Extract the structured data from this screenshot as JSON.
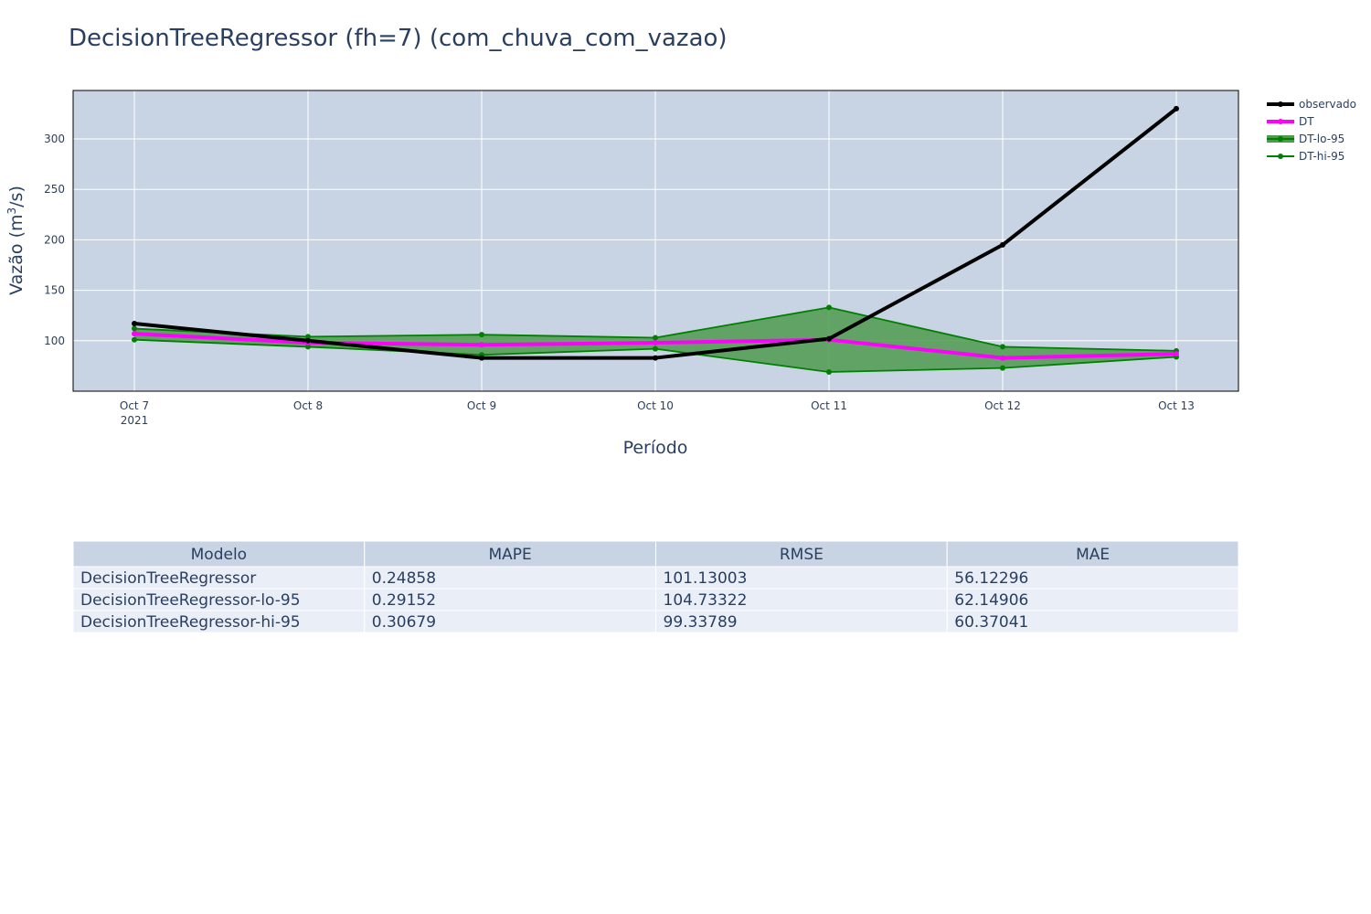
{
  "colors": {
    "plot_bg": "#c8d4e3",
    "grid": "#ffffff",
    "observado": "#000000",
    "dt": "#ff00ff",
    "band_line": "#008000",
    "band_fill": "#4e9a4e",
    "table_header_bg": "#c8d4e3",
    "table_cell_bg": "#e9eef7",
    "text": "#2a3f5f"
  },
  "chart_data": {
    "type": "line",
    "title": "DecisionTreeRegressor (fh=7) (com_chuva_com_vazao)",
    "xlabel": "Período",
    "ylabel": "Vazão (m³/s)",
    "ylabel_main": "Vazão (m",
    "ylabel_sup": "3",
    "ylabel_tail": "/s)",
    "x": [
      "Oct 7",
      "Oct 8",
      "Oct 9",
      "Oct 10",
      "Oct 11",
      "Oct 12",
      "Oct 13"
    ],
    "x_year_label": "2021",
    "yticks": [
      100,
      150,
      200,
      250,
      300
    ],
    "ylim": [
      50,
      348
    ],
    "grid": true,
    "legend_position": "right",
    "series": [
      {
        "name": "observado",
        "values": [
          117,
          100,
          83,
          83,
          102,
          195,
          330
        ]
      },
      {
        "name": "DT",
        "values": [
          107,
          98,
          96,
          98,
          101,
          83,
          87
        ]
      },
      {
        "name": "DT-lo-95",
        "values": [
          101,
          94,
          86,
          92,
          69,
          73,
          84
        ]
      },
      {
        "name": "DT-hi-95",
        "values": [
          112,
          104,
          106,
          103,
          133,
          94,
          90
        ]
      }
    ]
  },
  "table": {
    "headers": [
      "Modelo",
      "MAPE",
      "RMSE",
      "MAE"
    ],
    "rows": [
      [
        "DecisionTreeRegressor",
        "0.24858",
        "101.13003",
        "56.12296"
      ],
      [
        "DecisionTreeRegressor-lo-95",
        "0.29152",
        "104.73322",
        "62.14906"
      ],
      [
        "DecisionTreeRegressor-hi-95",
        "0.30679",
        "99.33789",
        "60.37041"
      ]
    ]
  }
}
